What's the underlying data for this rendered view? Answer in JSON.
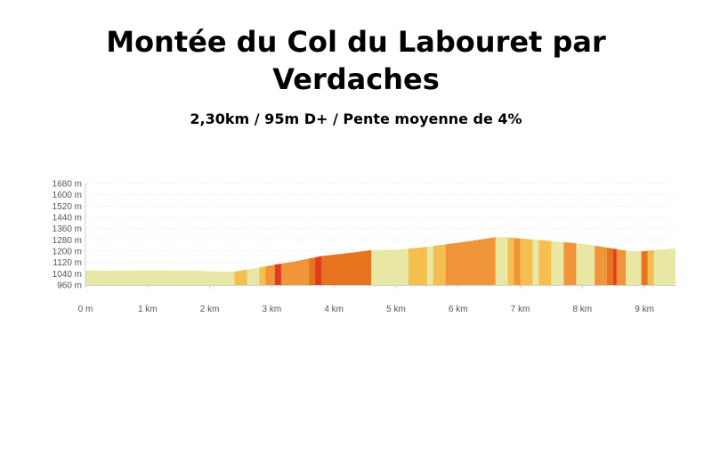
{
  "title": "Montée du Col du Labouret par Verdaches",
  "subtitle": "2,30km / 95m D+ / Pente moyenne de 4%",
  "colors": {
    "flat": "#e8e7a3",
    "gentle": "#f5bf4f",
    "moderate": "#f0953a",
    "steep": "#e8731f",
    "very_steep": "#e23c1f",
    "grid": "#ececec",
    "axis": "#cfcfcf"
  },
  "chart_data": {
    "type": "area",
    "title": "",
    "xlabel": "",
    "ylabel": "",
    "xlim": [
      0,
      9.5
    ],
    "ylim": [
      960,
      1680
    ],
    "grid": true,
    "x_ticks": [
      "0 m",
      "1 km",
      "2 km",
      "3 km",
      "4 km",
      "5 km",
      "6 km",
      "7 km",
      "8 km",
      "9 km"
    ],
    "y_ticks": [
      "1680 m",
      "1600 m",
      "1520 m",
      "1440 m",
      "1360 m",
      "1280 m",
      "1200 m",
      "1120 m",
      "1040 m",
      "960 m"
    ],
    "profile": {
      "x": [
        0,
        0.3,
        0.6,
        0.9,
        1.2,
        1.5,
        1.8,
        2.1,
        2.4,
        2.6,
        2.8,
        3.0,
        3.2,
        3.4,
        3.6,
        3.8,
        4.0,
        4.2,
        4.4,
        4.6,
        4.8,
        5.0,
        5.2,
        5.4,
        5.6,
        5.8,
        6.0,
        6.2,
        6.4,
        6.6,
        6.8,
        7.0,
        7.2,
        7.4,
        7.6,
        7.8,
        8.0,
        8.2,
        8.4,
        8.6,
        8.8,
        9.0,
        9.2,
        9.5
      ],
      "y": [
        1065,
        1060,
        1062,
        1064,
        1064,
        1063,
        1062,
        1055,
        1055,
        1070,
        1085,
        1100,
        1115,
        1130,
        1148,
        1165,
        1175,
        1185,
        1195,
        1208,
        1208,
        1210,
        1218,
        1226,
        1236,
        1248,
        1260,
        1272,
        1285,
        1300,
        1298,
        1290,
        1282,
        1275,
        1268,
        1260,
        1252,
        1240,
        1225,
        1210,
        1198,
        1200,
        1210,
        1218
      ]
    },
    "slope_segments": [
      {
        "from": 0,
        "to": 2.4,
        "slope_class": "flat"
      },
      {
        "from": 2.4,
        "to": 2.6,
        "slope_class": "gentle"
      },
      {
        "from": 2.6,
        "to": 2.8,
        "slope_class": "flat"
      },
      {
        "from": 2.8,
        "to": 2.9,
        "slope_class": "gentle"
      },
      {
        "from": 2.9,
        "to": 3.05,
        "slope_class": "moderate"
      },
      {
        "from": 3.05,
        "to": 3.15,
        "slope_class": "very_steep"
      },
      {
        "from": 3.15,
        "to": 3.6,
        "slope_class": "moderate"
      },
      {
        "from": 3.6,
        "to": 3.7,
        "slope_class": "steep"
      },
      {
        "from": 3.7,
        "to": 3.8,
        "slope_class": "very_steep"
      },
      {
        "from": 3.8,
        "to": 4.6,
        "slope_class": "steep"
      },
      {
        "from": 4.6,
        "to": 5.2,
        "slope_class": "flat"
      },
      {
        "from": 5.2,
        "to": 5.5,
        "slope_class": "gentle"
      },
      {
        "from": 5.5,
        "to": 5.6,
        "slope_class": "flat"
      },
      {
        "from": 5.6,
        "to": 5.8,
        "slope_class": "gentle"
      },
      {
        "from": 5.8,
        "to": 6.0,
        "slope_class": "moderate"
      },
      {
        "from": 6.0,
        "to": 6.6,
        "slope_class": "moderate"
      },
      {
        "from": 6.6,
        "to": 6.8,
        "slope_class": "flat"
      },
      {
        "from": 6.8,
        "to": 6.9,
        "slope_class": "gentle"
      },
      {
        "from": 6.9,
        "to": 7.0,
        "slope_class": "moderate"
      },
      {
        "from": 7.0,
        "to": 7.2,
        "slope_class": "gentle"
      },
      {
        "from": 7.2,
        "to": 7.3,
        "slope_class": "flat"
      },
      {
        "from": 7.3,
        "to": 7.5,
        "slope_class": "gentle"
      },
      {
        "from": 7.5,
        "to": 7.7,
        "slope_class": "flat"
      },
      {
        "from": 7.7,
        "to": 7.9,
        "slope_class": "moderate"
      },
      {
        "from": 7.9,
        "to": 8.2,
        "slope_class": "flat"
      },
      {
        "from": 8.2,
        "to": 8.4,
        "slope_class": "moderate"
      },
      {
        "from": 8.4,
        "to": 8.5,
        "slope_class": "steep"
      },
      {
        "from": 8.5,
        "to": 8.55,
        "slope_class": "very_steep"
      },
      {
        "from": 8.55,
        "to": 8.7,
        "slope_class": "moderate"
      },
      {
        "from": 8.7,
        "to": 8.95,
        "slope_class": "flat"
      },
      {
        "from": 8.95,
        "to": 9.05,
        "slope_class": "steep"
      },
      {
        "from": 9.05,
        "to": 9.15,
        "slope_class": "gentle"
      },
      {
        "from": 9.15,
        "to": 9.5,
        "slope_class": "flat"
      }
    ]
  }
}
